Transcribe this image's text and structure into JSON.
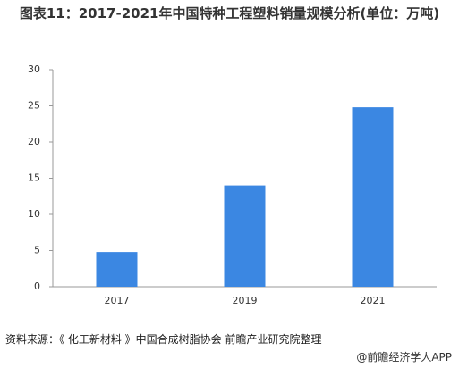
{
  "chart_data": {
    "type": "bar",
    "title": "图表11：2017-2021年中国特种工程塑料销量规模分析(单位：万吨)",
    "categories": [
      "2017",
      "2019",
      "2021"
    ],
    "values": [
      4.8,
      14,
      24.8
    ],
    "color": "#3b87e2",
    "ylim": [
      0,
      30
    ],
    "yticks": [
      0,
      5,
      10,
      15,
      20,
      25,
      30
    ],
    "grid": false,
    "source": "资料来源：《 化工新材料 》中国合成树脂协会 前瞻产业研究院整理",
    "watermark": "@前瞻经济学人APP"
  }
}
